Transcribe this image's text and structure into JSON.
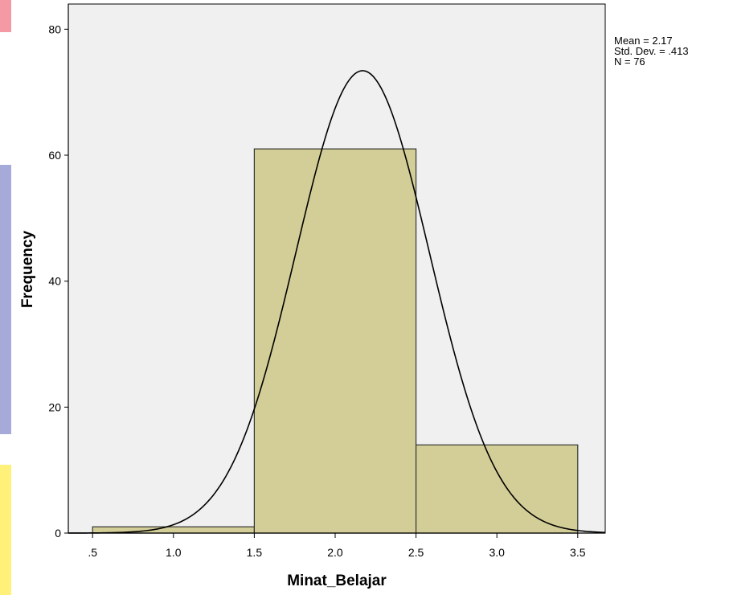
{
  "chart_data": {
    "type": "bar",
    "subtype": "histogram",
    "title": "",
    "xlabel": "Minat_Belajar",
    "ylabel": "Frequency",
    "bins": [
      {
        "from": 0.5,
        "to": 1.5,
        "count": 1
      },
      {
        "from": 1.5,
        "to": 2.5,
        "count": 61
      },
      {
        "from": 2.5,
        "to": 3.5,
        "count": 14
      }
    ],
    "xlim": [
      0.35,
      3.67
    ],
    "ylim": [
      0,
      84
    ],
    "xticks": [
      0.5,
      1.0,
      1.5,
      2.0,
      2.5,
      3.0,
      3.5
    ],
    "xtick_labels": [
      ".5",
      "1.0",
      "1.5",
      "2.0",
      "2.5",
      "3.0",
      "3.5"
    ],
    "yticks": [
      0,
      20,
      40,
      60,
      80
    ],
    "ytick_labels": [
      "0",
      "20",
      "40",
      "60",
      "80"
    ],
    "normal_curve": {
      "mean": 2.17,
      "std": 0.413,
      "n": 76,
      "bin_width": 1.0
    },
    "stats_box": [
      "Mean = 2.17",
      "Std. Dev. = .413",
      "N = 76"
    ],
    "grid": false,
    "legend": "none",
    "colors": {
      "plot_background": "#f0f0f0",
      "bar_fill": "#d3ce97",
      "bar_stroke": "#333333",
      "curve": "#000000",
      "axis": "#000000",
      "left_decor": [
        "#f39aa4",
        "#a6aad8",
        "#fff07a"
      ]
    }
  }
}
